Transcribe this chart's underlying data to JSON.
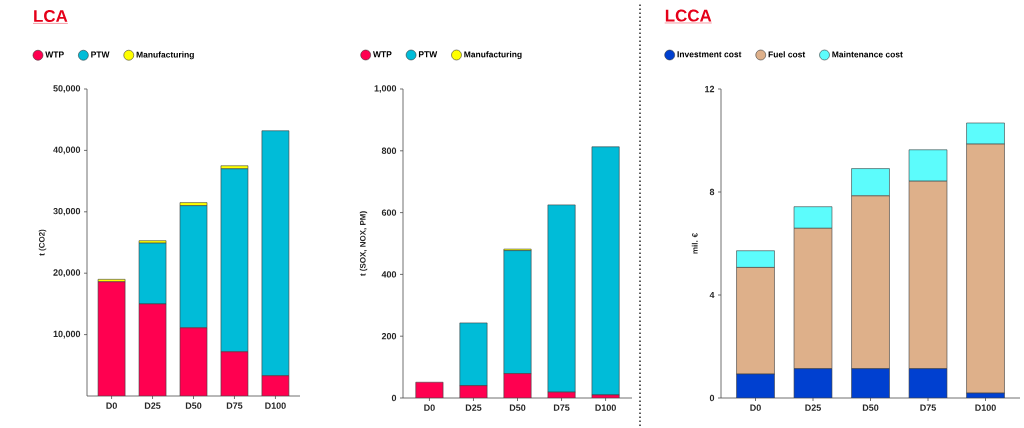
{
  "chart_data": [
    {
      "type": "bar",
      "stacked": true,
      "title": "LCA",
      "ylabel": "t (CO2)",
      "categories": [
        "D0",
        "D25",
        "D50",
        "D75",
        "D100"
      ],
      "series": [
        {
          "name": "WTP",
          "color": "#ff0050",
          "values": [
            18600,
            15000,
            11100,
            7200,
            3300
          ]
        },
        {
          "name": "PTW",
          "color": "#00bcd8",
          "values": [
            0,
            9900,
            19900,
            29800,
            39900
          ]
        },
        {
          "name": "Manufacturing",
          "color": "#ffff00",
          "values": [
            400,
            400,
            500,
            500,
            0
          ]
        }
      ],
      "ylim": [
        0,
        50000
      ],
      "yticks": [
        {
          "value": 10000,
          "label": "10,000"
        },
        {
          "value": 20000,
          "label": "20,000"
        },
        {
          "value": 30000,
          "label": "30,000"
        },
        {
          "value": 40000,
          "label": "40,000"
        },
        {
          "value": 50000,
          "label": "50,000"
        }
      ],
      "legend": "top"
    },
    {
      "type": "bar",
      "stacked": true,
      "ylabel": "t (SOX, NOX, PM)",
      "categories": [
        "D0",
        "D25",
        "D50",
        "D75",
        "D100"
      ],
      "series": [
        {
          "name": "WTP",
          "color": "#ff0050",
          "values": [
            51,
            40,
            79,
            19,
            10
          ]
        },
        {
          "name": "PTW",
          "color": "#00bcd8",
          "values": [
            0,
            203,
            398,
            606,
            803
          ]
        },
        {
          "name": "Manufacturing",
          "color": "#ffff00",
          "values": [
            0,
            0,
            5,
            0,
            0
          ]
        }
      ],
      "ylim": [
        0,
        1000
      ],
      "yticks": [
        0,
        200,
        400,
        600,
        800,
        {
          "value": 1000,
          "label": "1,000"
        }
      ],
      "legend": "top"
    },
    {
      "type": "bar",
      "stacked": true,
      "title": "LCCA",
      "ylabel": "mil. €",
      "categories": [
        "D0",
        "D25",
        "D50",
        "D75",
        "D100"
      ],
      "series": [
        {
          "name": "Investment cost",
          "color": "#0040d0",
          "values": [
            0.93,
            1.14,
            1.14,
            1.14,
            0.19
          ]
        },
        {
          "name": "Fuel cost",
          "color": "#deb08a",
          "values": [
            4.14,
            5.45,
            6.71,
            7.28,
            9.67
          ]
        },
        {
          "name": "Maintenance cost",
          "color": "#5cfcfc",
          "values": [
            0.65,
            0.84,
            1.06,
            1.22,
            0.82
          ]
        }
      ],
      "ylim": [
        0,
        12
      ],
      "yticks": [
        0,
        4,
        8,
        12
      ],
      "legend": "top"
    }
  ]
}
